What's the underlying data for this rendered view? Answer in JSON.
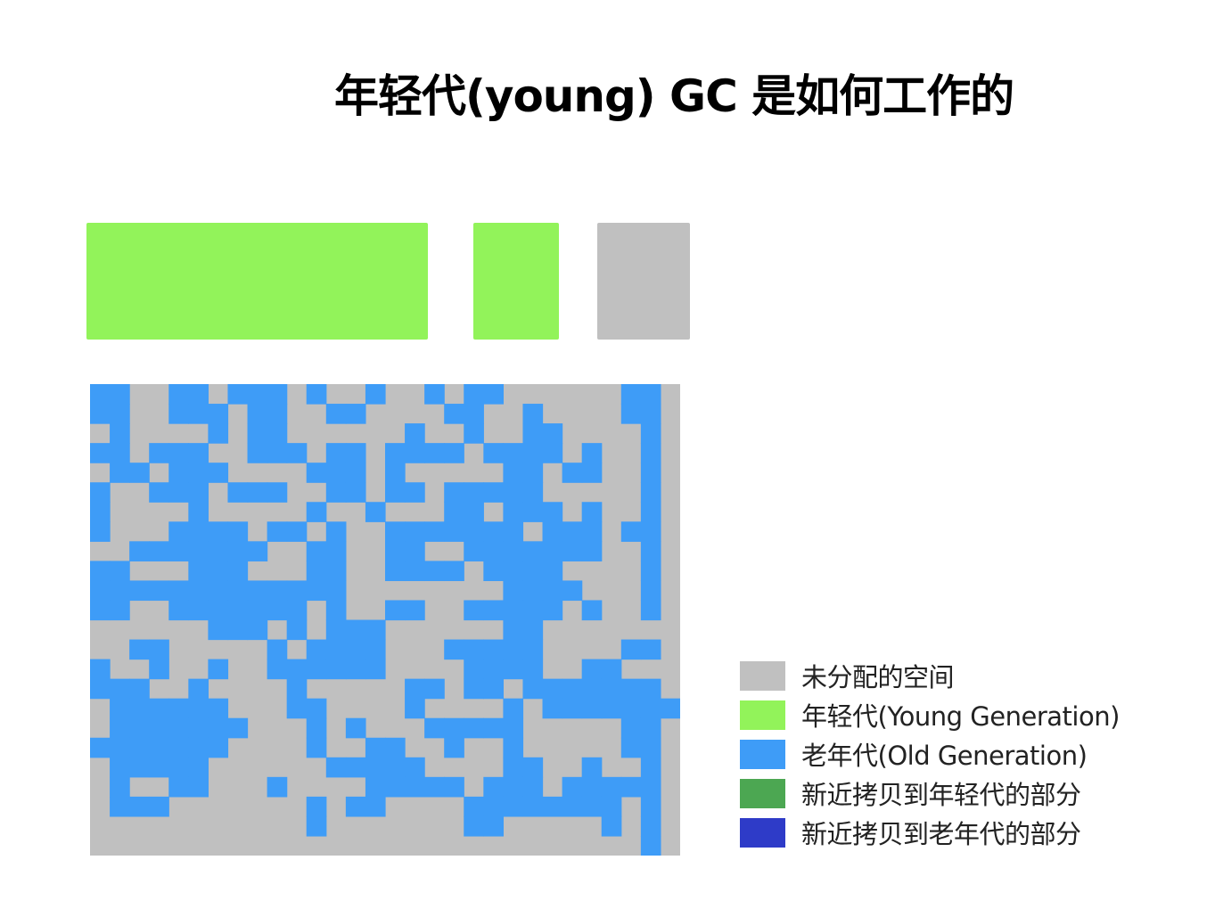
{
  "title": "年轻代(young) GC 是如何工作的",
  "colors": {
    "unallocated": "#c0c0c0",
    "young": "#92f35a",
    "old": "#3e9cf7",
    "copied_young": "#4ca752",
    "copied_old": "#2e3bc8"
  },
  "young_generation": {
    "eden": "young",
    "survivor_from": "young",
    "survivor_to": "unallocated"
  },
  "old_generation_grid": {
    "rows": [
      "OOGGOOGOOOGOGGOGGOGOOGGGGGGOO",
      "OOGGOOOGOOGGOOGGGGOOGGOGGGGOO",
      "GOGGGGOGOOGGGGGGOGGOGGOOGGGGO",
      "OOGOOOGGOOOGOOGOOOOGOOOOGOGGO",
      "GOOGOOOGGGGOOOGOGGGGGOOGOOGGO",
      "OGGOOOGOOOGGOOGOOGOOOOOGGGGGO",
      "OGGGGOGGGGGOGGOGGGOOGOOOGOGGO",
      "OGGGOOOOGOOGOGGOOOOOOOGOOOGOO",
      "GGOOOOOOOGGOOGGOOGGOOOOOOOGGO",
      "OOGGGOOOGGGOOGGOOOOGOOOOGGGGO",
      "OOOOOOOOOOOOOGGGGGGGGOOOOGGGO",
      "OOGGOOOOOOOGOGGOOGGOOOOOGOGGO",
      "GGGGGGOOOGOGOOOGGGGGGOOGGGGGG",
      "GGOOGGGGGOGOOOOGGGOOOOOGGGGOO",
      "OGGOGGOGGOOOOOOGGGGOOOOGGOOGG",
      "OOOGGOGGGGOGGGGGOOGOOGOOOOOOO",
      "GOOOOOOGGGOOGGGGOGGGGOGOOOOOOO",
      "GOOOOOOOGGGOGOGGGOOOOOGGGGGOO",
      "OOOOOOOGGGGOGGOOGGOGGOGGGGGOO",
      "GOOOOOGGGGGGOOOOOGGGGOOGGOGGO",
      "GOGGOOGGGOGGGGOOOOOGOOOGOOOOO",
      "GOOOGGGGGGGOGOOGGGGOOOOOOOOGO",
      "GGGGGGGGGGGOGGGGGGGOOGGGGGOGO",
      "GGGGGGGGGGGGGGGGGGGGGGGGGGGGO"
    ]
  },
  "legend": [
    {
      "label": "未分配的空间",
      "color": "#c0c0c0"
    },
    {
      "label": "年轻代(Young Generation)",
      "color": "#92f35a"
    },
    {
      "label": "老年代(Old Generation)",
      "color": "#3e9cf7"
    },
    {
      "label": "新近拷贝到年轻代的部分",
      "color": "#4ca752"
    },
    {
      "label": "新近拷贝到老年代的部分",
      "color": "#2e3bc8"
    }
  ]
}
